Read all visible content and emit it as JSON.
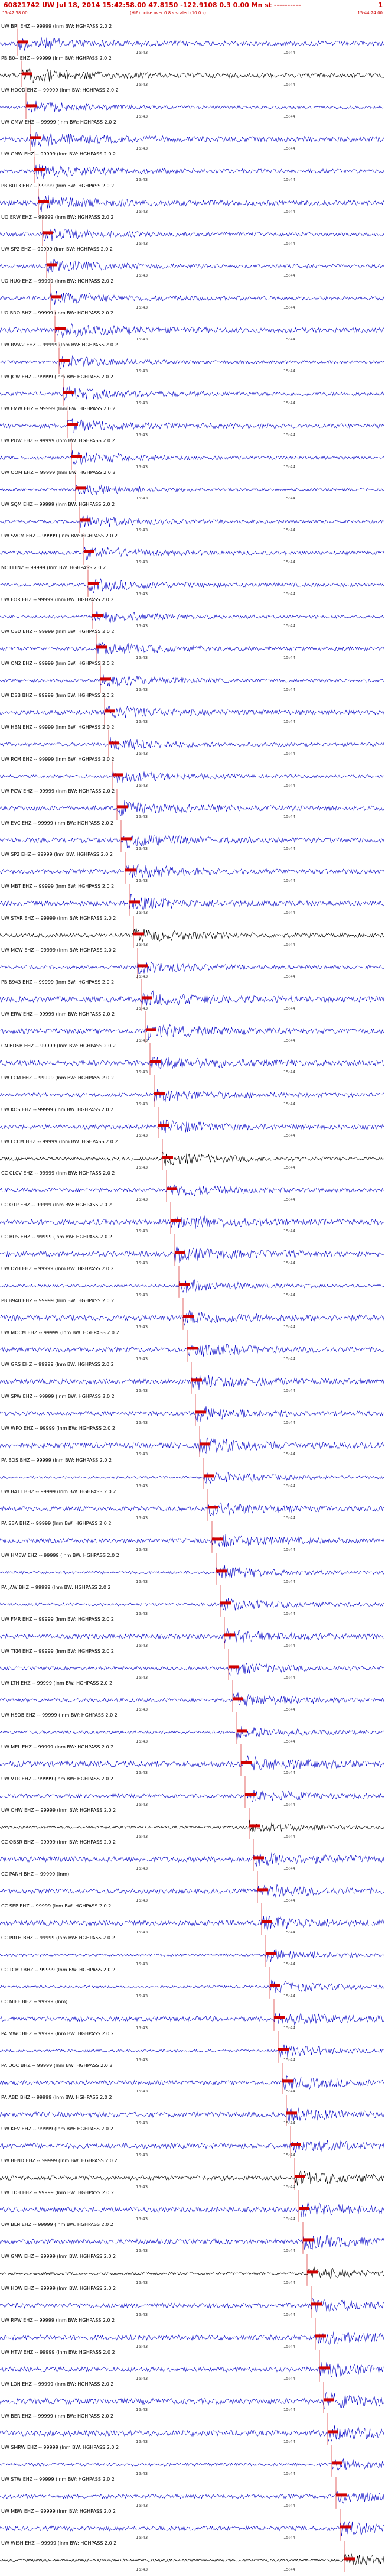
{
  "header": {
    "title": "60821742 UW Jul 18, 2014 15:42:58.00   47.8150 -122.9108  0.3 0.00 Mn st ----------",
    "page_number": "1",
    "start_time": "15:42:58.00",
    "scale_note": "(Hi6) noise over 0.8 s scaled (10.0 s)",
    "end_time": "15:44:24.00"
  },
  "tick_labels": {
    "left": "15:43",
    "right": "15:44"
  },
  "colors": {
    "waveform": "#1010c8",
    "pick_marker": "#d00000",
    "dark_waveform": "#000000",
    "header_text": "#cc0000"
  },
  "traces": [
    {
      "label": "UW BRI EHZ -- 99999 (lnm BW: HGHPASS  2.0  2",
      "tick_left": "15:43",
      "tick_right": "15:44"
    },
    {
      "label": "PB B0-- EHZ -- 99999 (lnm BW: HGHPASS  2.0  2",
      "tick_left": "15:43",
      "tick_right": "15:44"
    },
    {
      "label": "UW HOOD EHZ -- 99999 (lnm BW: HGHPASS  2.0  2",
      "tick_left": "15:43",
      "tick_right": "15:44"
    },
    {
      "label": "UW GMW EHZ -- 99999 (lnm BW: HGHPASS  2.0  2",
      "tick_left": "15:43",
      "tick_right": "15:44"
    },
    {
      "label": "UW GNW EHZ -- 99999 (lnm BW: HGHPASS  2.0  2",
      "tick_left": "15:43",
      "tick_right": "15:44"
    },
    {
      "label": "PB B013 EHZ -- 99999 (lnm BW: HGHPASS  2.0  2",
      "tick_left": "15:43",
      "tick_right": "15:44"
    },
    {
      "label": "UO ERW EHZ -- 99999 (lnm BW: HGHPASS  2.0  2",
      "tick_left": "15:43",
      "tick_right": "15:44"
    },
    {
      "label": "UW SP2 EHZ -- 99999 (lnm BW: HGHPASS  2.0  2",
      "tick_left": "15:43",
      "tick_right": "15:44"
    },
    {
      "label": "UO HUO EHZ -- 99999 (lnm BW: HGHPASS  2.0  2",
      "tick_left": "15:43",
      "tick_right": "15:44"
    },
    {
      "label": "UO BRO BHZ -- 99999 (lnm BW: HGHPASS  2.0  2",
      "tick_left": "15:43",
      "tick_right": "15:44"
    },
    {
      "label": "UW RVW2 EHZ -- 99999 (lnm BW: HGHPASS  2.0  2",
      "tick_left": "15:43",
      "tick_right": "15:44"
    },
    {
      "label": "UW JCW EHZ -- 99999 (lnm BW: HGHPASS  2.0  2",
      "tick_left": "15:43",
      "tick_right": "15:44"
    },
    {
      "label": "UW FMW EHZ -- 99999 (lnm BW: HGHPASS  2.0  2",
      "tick_left": "15:43",
      "tick_right": "15:44"
    },
    {
      "label": "UW PUW EHZ -- 99999 (lnm BW: HGHPASS  2.0  2",
      "tick_left": "15:43",
      "tick_right": "15:44"
    },
    {
      "label": "UW OOM EHZ -- 99999 (lnm BW: HGHPASS  2.0  2",
      "tick_left": "15:43",
      "tick_right": "15:44"
    },
    {
      "label": "UW SQM EHZ -- 99999 (lnm BW: HGHPASS  2.0  2",
      "tick_left": "15:43",
      "tick_right": "15:44"
    },
    {
      "label": "UW SVCM EHZ -- 99999 (lnm BW: HGHPASS  2.0  2",
      "tick_left": "15:43",
      "tick_right": "15:44"
    },
    {
      "label": "NC LTTNZ -- 99999 (lnm BW: HGHPASS  2.0  2",
      "tick_left": "15:43",
      "tick_right": "15:44"
    },
    {
      "label": "UW FOR EHZ -- 99999 (lnm BW: HGHPASS  2.0  2",
      "tick_left": "15:43",
      "tick_right": "15:44"
    },
    {
      "label": "UW OSD EHZ -- 99999 (lnm BW: HGHPASS  2.0  2",
      "tick_left": "15:43",
      "tick_right": "15:44"
    },
    {
      "label": "UW ON2 EHZ -- 99999 (lnm BW: HGHPASS  2.0  2",
      "tick_left": "15:43",
      "tick_right": "15:44"
    },
    {
      "label": "UW DSB BHZ -- 99999 (lnm BW: HGHPASS  2.0  2",
      "tick_left": "15:43",
      "tick_right": "15:44"
    },
    {
      "label": "UW HBN EHZ -- 99999 (lnm BW: HGHPASS  2.0  2",
      "tick_left": "15:43",
      "tick_right": "15:44"
    },
    {
      "label": "UW RCM EHZ -- 99999 (lnm BW: HGHPASS  2.0  2",
      "tick_left": "15:43",
      "tick_right": "15:44"
    },
    {
      "label": "UW PCW EHZ -- 99999 (lnm BW: HGHPASS  2.0  2",
      "tick_left": "15:43",
      "tick_right": "15:44"
    },
    {
      "label": "UW EVC EHZ -- 99999 (lnm BW: HGHPASS  2.0  2",
      "tick_left": "15:43",
      "tick_right": "15:44"
    },
    {
      "label": "UW SP2 EHZ -- 99999 (lnm BW: HGHPASS  2.0  2",
      "tick_left": "15:43",
      "tick_right": "15:44"
    },
    {
      "label": "UW MBT EHZ -- 99999 (lnm BW: HGHPASS  2.0  2",
      "tick_left": "15:43",
      "tick_right": "15:44"
    },
    {
      "label": "UW STAR EHZ -- 99999 (lnm BW: HGHPASS  2.0  2",
      "tick_left": "15:43",
      "tick_right": "15:44"
    },
    {
      "label": "UW MCW EHZ -- 99999 (lnm BW: HGHPASS  2.0  2",
      "tick_left": "15:43",
      "tick_right": "15:44"
    },
    {
      "label": "PB B943 EHZ -- 99999 (lnm BW: HGHPASS  2.0  2",
      "tick_left": "15:43",
      "tick_right": "15:44"
    },
    {
      "label": "UW ERW EHZ -- 99999 (lnm BW: HGHPASS  2.0  2",
      "tick_left": "15:43",
      "tick_right": "15:44"
    },
    {
      "label": "CN BDSB EHZ -- 99999 (lnm BW: HGHPASS  2.0  2",
      "tick_left": "15:43",
      "tick_right": "15:44"
    },
    {
      "label": "UW LCM EHZ -- 99999 (lnm BW: HGHPASS  2.0  2",
      "tick_left": "15:43",
      "tick_right": "15:44"
    },
    {
      "label": "UW KOS EHZ -- 99999 (lnm BW: HGHPASS  2.0  2",
      "tick_left": "15:43",
      "tick_right": "15:44"
    },
    {
      "label": "UW LCCM HHZ -- 99999 (lnm BW: HGHPASS  2.0  2",
      "tick_left": "15:43",
      "tick_right": "15:44"
    },
    {
      "label": "CC CLCV EHZ -- 99999 (lnm BW: HGHPASS  2.0  2",
      "tick_left": "15:43",
      "tick_right": "15:44"
    },
    {
      "label": "CC OTP EHZ -- 99999 (lnm BW: HGHPASS  2.0  2",
      "tick_left": "15:43",
      "tick_right": "15:44"
    },
    {
      "label": "CC BUS EHZ -- 99999 (lnm BW: HGHPASS  2.0  2",
      "tick_left": "15:43",
      "tick_right": "15:44"
    },
    {
      "label": "UW DYH EHZ -- 99999 (lnm BW: HGHPASS  2.0  2",
      "tick_left": "15:43",
      "tick_right": "15:44"
    },
    {
      "label": "PB B940 EHZ -- 99999 (lnm BW: HGHPASS  2.0  2",
      "tick_left": "15:43",
      "tick_right": "15:44"
    },
    {
      "label": "UW MOCM EHZ -- 99999 (lnm BW: HGHPASS  2.0  2",
      "tick_left": "15:43",
      "tick_right": "15:44"
    },
    {
      "label": "UW GRS EHZ -- 99999 (lnm BW: HGHPASS  2.0  2",
      "tick_left": "15:43",
      "tick_right": "15:44"
    },
    {
      "label": "UW SPW EHZ -- 99999 (lnm BW: HGHPASS  2.0  2",
      "tick_left": "15:43",
      "tick_right": "15:44"
    },
    {
      "label": "UW WPO EHZ -- 99999 (lnm BW: HGHPASS  2.0  2",
      "tick_left": "15:43",
      "tick_right": "15:44"
    },
    {
      "label": "PA BOS BHZ -- 99999 (lnm BW: HGHPASS  2.0  2",
      "tick_left": "15:43",
      "tick_right": "15:44"
    },
    {
      "label": "UW BATT BHZ -- 99999 (lnm BW: HGHPASS  2.0  2",
      "tick_left": "15:43",
      "tick_right": "15:44"
    },
    {
      "label": "PA SBA BHZ -- 99999 (lnm BW: HGHPASS  2.0  2",
      "tick_left": "15:43",
      "tick_right": "15:44"
    },
    {
      "label": "UW HMEW EHZ -- 99999 (lnm BW: HGHPASS  2.0  2",
      "tick_left": "15:43",
      "tick_right": "15:44"
    },
    {
      "label": "PA JAW BHZ -- 99999 (lnm BW: HGHPASS  2.0  2",
      "tick_left": "15:43",
      "tick_right": "15:44"
    },
    {
      "label": "UW FMR EHZ -- 99999 (lnm BW: HGHPASS  2.0  2",
      "tick_left": "15:43",
      "tick_right": "15:44"
    },
    {
      "label": "UW TKM EHZ -- 99999 (lnm BW: HGHPASS  2.0  2",
      "tick_left": "15:43",
      "tick_right": "15:44"
    },
    {
      "label": "UW LTH EHZ -- 99999 (lnm BW: HGHPASS  2.0  2",
      "tick_left": "15:43",
      "tick_right": "15:44"
    },
    {
      "label": "UW HSOB EHZ -- 99999 (lnm BW: HGHPASS  2.0  2",
      "tick_left": "15:43",
      "tick_right": "15:44"
    },
    {
      "label": "UW MEL EHZ -- 99999 (lnm BW: HGHPASS  2.0  2",
      "tick_left": "15:43",
      "tick_right": "15:44"
    },
    {
      "label": "UW VTR EHZ -- 99999 (lnm BW: HGHPASS  2.0  2",
      "tick_left": "15:43",
      "tick_right": "15:44"
    },
    {
      "label": "UW OHW EHZ -- 99999 (lnm BW: HGHPASS  2.0  2",
      "tick_left": "15:43",
      "tick_right": "15:44"
    },
    {
      "label": "CC OBSR BHZ -- 99999 (lnm BW: HGHPASS  2.0  2",
      "tick_left": "15:43",
      "tick_right": "15:44"
    },
    {
      "label": "CC PANH BHZ -- 99999 (lnm)",
      "tick_left": "15:43",
      "tick_right": "15:44"
    },
    {
      "label": "CC SEP EHZ -- 99999 (lnm BW: HGHPASS  2.0  2",
      "tick_left": "15:43",
      "tick_right": "15:44"
    },
    {
      "label": "CC PRLH BHZ -- 99999 (lnm BW: HGHPASS  2.0  2",
      "tick_left": "15:43",
      "tick_right": "15:44"
    },
    {
      "label": "CC TCBU BHZ -- 99999 (lnm BW: HGHPASS  2.0  2",
      "tick_left": "15:43",
      "tick_right": "15:44"
    },
    {
      "label": "CC MIFE BHZ -- 99999 (lnm)",
      "tick_left": "15:43",
      "tick_right": "15:44"
    },
    {
      "label": "PA MWC BHZ -- 99999 (lnm BW: HGHPASS  2.0  2",
      "tick_left": "15:43",
      "tick_right": "15:44"
    },
    {
      "label": "PA DOC BHZ -- 99999 (lnm BW: HGHPASS  2.0  2",
      "tick_left": "15:43",
      "tick_right": "15:44"
    },
    {
      "label": "PA ABD BHZ -- 99999 (lnm BW: HGHPASS  2.0  2",
      "tick_left": "15:43",
      "tick_right": "15:44"
    },
    {
      "label": "UW KEV EHZ -- 99999 (lnm BW: HGHPASS  2.0  2",
      "tick_left": "15:43",
      "tick_right": "15:44"
    },
    {
      "label": "UW BEND EHZ -- 99999 (lnm BW: HGHPASS  2.0  2",
      "tick_left": "15:43",
      "tick_right": "15:44"
    },
    {
      "label": "UW TDH EHZ -- 99999 (lnm BW: HGHPASS  2.0  2",
      "tick_left": "15:43",
      "tick_right": "15:44"
    },
    {
      "label": "UW BLN EHZ -- 99999 (lnm BW: HGHPASS  2.0  2",
      "tick_left": "15:43",
      "tick_right": "15:44"
    },
    {
      "label": "UW GNW EHZ -- 99999 (lnm BW: HGHPASS  2.0  2",
      "tick_left": "15:43",
      "tick_right": "15:44"
    },
    {
      "label": "UW HDW EHZ -- 99999 (lnm BW: HGHPASS  2.0  2",
      "tick_left": "15:43",
      "tick_right": "15:44"
    },
    {
      "label": "UW RPW EHZ -- 99999 (lnm BW: HGHPASS  2.0  2",
      "tick_left": "15:43",
      "tick_right": "15:44"
    },
    {
      "label": "UW HTW EHZ -- 99999 (lnm BW: HGHPASS  2.0  2",
      "tick_left": "15:43",
      "tick_right": "15:44"
    },
    {
      "label": "UW LON EHZ -- 99999 (lnm BW: HGHPASS  2.0  2",
      "tick_left": "15:43",
      "tick_right": "15:44"
    },
    {
      "label": "UW BER EHZ -- 99999 (lnm BW: HGHPASS  2.0  2",
      "tick_left": "15:43",
      "tick_right": "15:44"
    },
    {
      "label": "UW SMRW EHZ -- 99999 (lnm BW: HGHPASS  2.0  2",
      "tick_left": "15:43",
      "tick_right": "15:44"
    },
    {
      "label": "UW STW EHZ -- 99999 (lnm BW: HGHPASS  2.0  2",
      "tick_left": "15:43",
      "tick_right": "15:44"
    },
    {
      "label": "UW MBW EHZ -- 99999 (lnm BW: HGHPASS  2.0  2",
      "tick_left": "15:43",
      "tick_right": "15:44"
    },
    {
      "label": "UW WISH EHZ -- 99999 (lnm BW: HGHPASS  2.0  2",
      "tick_left": "15:43",
      "tick_right": "15:44"
    }
  ]
}
